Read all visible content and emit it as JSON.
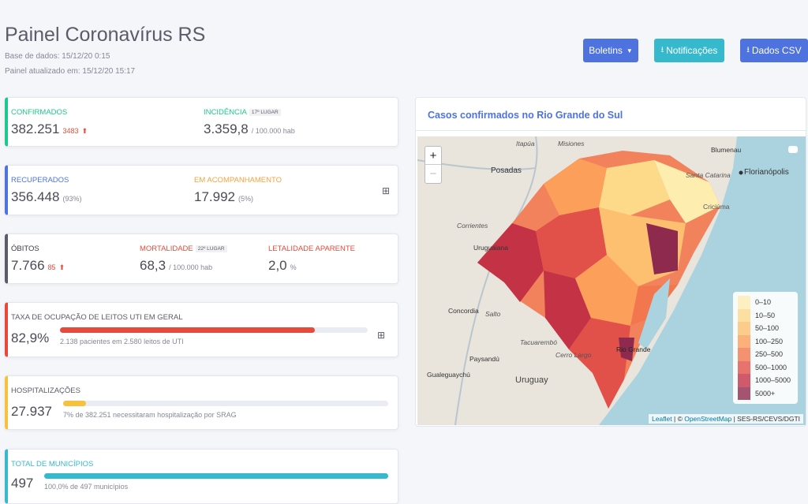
{
  "header": {
    "title": "Painel Coronavírus RS",
    "base_date": "Base de dados: 15/12/20 0:15",
    "updated": "Painel atualizado em: 15/12/20 15:17"
  },
  "buttons": [
    "Boletins",
    "Notificações",
    "Dados CSV"
  ],
  "cards": {
    "confirmed": {
      "label": "CONFIRMADOS",
      "value": "382.251",
      "delta": "3483"
    },
    "incidence": {
      "label": "INCIDÊNCIA",
      "rank": "17º LUGAR",
      "value": "3.359,8",
      "unit": "/ 100.000 hab"
    },
    "recovered": {
      "label": "RECUPERADOS",
      "value": "356.448",
      "share": "(93%)"
    },
    "monitoring": {
      "label": "EM ACOMPANHAMENTO",
      "value": "17.992",
      "share": "(5%)"
    },
    "deaths": {
      "label": "ÓBITOS",
      "value": "7.766",
      "delta": "85"
    },
    "mortality": {
      "label": "MORTALIDADE",
      "rank": "22º LUGAR",
      "value": "68,3",
      "unit": "/ 100.000 hab"
    },
    "lethality": {
      "label": "LETALIDADE APARENTE",
      "value": "2,0",
      "unit": "%"
    },
    "icu": {
      "label": "TAXA DE OCUPAÇÃO DE LEITOS UTI EM GERAL",
      "value": {
        "value": 82.9,
        "label": "82,9%"
      },
      "note": "2.138 pacientes em 2.580 leitos de UTI"
    },
    "hospitalizations": {
      "label": "HOSPITALIZAÇÕES",
      "value": "27.937",
      "progress": 7,
      "note": "7% de 382.251 necessitaram hospitalização por SRAG"
    },
    "municipalities": {
      "label": "TOTAL DE MUNICÍPIOS",
      "value": "497",
      "progress": 100,
      "note": "100,0% de 497 municípios"
    }
  },
  "map": {
    "title": "Casos confirmados no Rio Grande do Sul",
    "zoom_in": "+",
    "zoom_out": "−",
    "legend": [
      {
        "label": "0–10",
        "color": "#fdeeb0"
      },
      {
        "label": "10–50",
        "color": "#fdd98a"
      },
      {
        "label": "50–100",
        "color": "#fdc070"
      },
      {
        "label": "100–250",
        "color": "#fc9f5a"
      },
      {
        "label": "250–500",
        "color": "#f3774e"
      },
      {
        "label": "500–1000",
        "color": "#e2504a"
      },
      {
        "label": "1000–5000",
        "color": "#c43246"
      },
      {
        "label": "5000+",
        "color": "#8e2a4e"
      }
    ],
    "places": [
      "Itapúa",
      "Misiones",
      "Posadas",
      "Corrientes",
      "Uruguaiana",
      "Concordia",
      "Salto",
      "Paysandú",
      "Tacuarembó",
      "Cerro Largo",
      "Uruguay",
      "Gualeguaychú",
      "Blumenau",
      "Santa Catarina",
      "Florianópolis",
      "Criciúma",
      "Rio Grande"
    ],
    "attribution": {
      "leaflet": "Leaflet",
      "sep": "| ©",
      "osm": "OpenStreetMap",
      "source": "| SES-RS/CEVS/DGTI"
    }
  }
}
